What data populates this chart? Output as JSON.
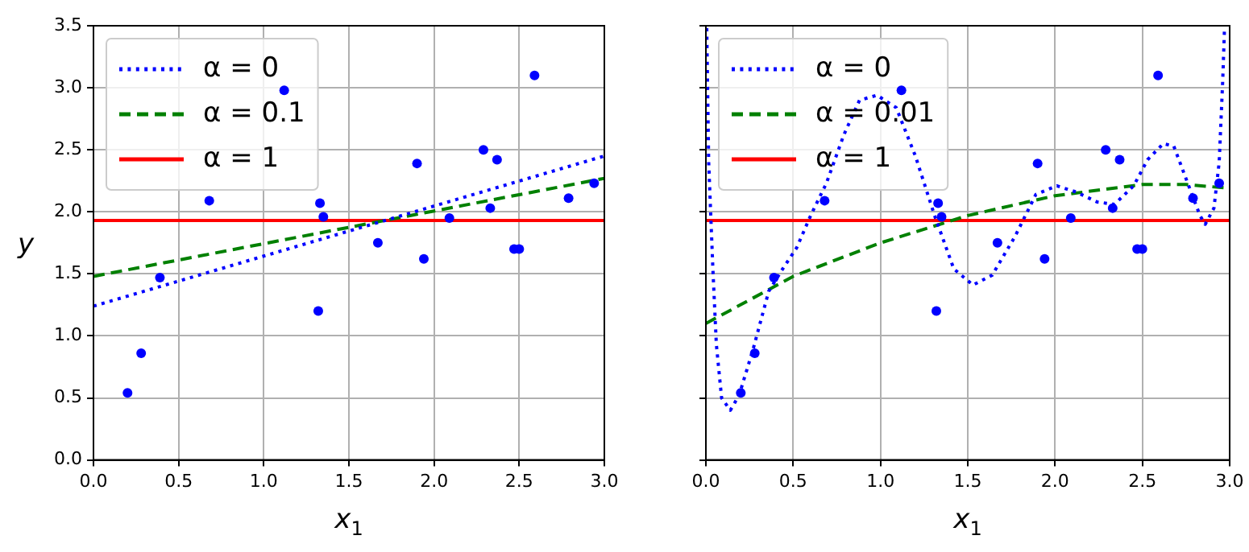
{
  "chart_data": [
    {
      "type": "scatter",
      "xlabel": "x$_{1}$",
      "ylabel": "y",
      "xlim": [
        0,
        3
      ],
      "ylim": [
        0,
        3.5
      ],
      "xticks": [
        {
          "value": 0,
          "label": "0.0"
        },
        0.5,
        {
          "value": 1,
          "label": "1.0"
        },
        1.5,
        {
          "value": 2,
          "label": "2.0"
        },
        2.5,
        {
          "value": 3,
          "label": "3.0"
        }
      ],
      "yticks": [
        {
          "value": 0,
          "label": "0.0"
        },
        0.5,
        {
          "value": 1,
          "label": "1.0"
        },
        1.5,
        {
          "value": 2,
          "label": "2.0"
        },
        2.5,
        {
          "value": 3,
          "label": "3.0"
        },
        3.5
      ],
      "grid": true,
      "legend": "top left",
      "series": [
        {
          "type": "scatter",
          "color": "#0000ff",
          "marker": "circle",
          "x": [
            0.2,
            0.28,
            0.39,
            0.68,
            1.12,
            1.33,
            1.35,
            1.32,
            1.67,
            1.9,
            1.94,
            2.09,
            2.29,
            2.33,
            2.37,
            2.47,
            2.5,
            2.59,
            2.79,
            2.94
          ],
          "values": [
            0.54,
            0.86,
            1.47,
            2.09,
            2.98,
            2.07,
            1.96,
            1.2,
            1.75,
            2.39,
            1.62,
            1.95,
            2.5,
            2.03,
            2.42,
            1.7,
            1.7,
            3.1,
            2.11,
            2.23
          ]
        },
        {
          "type": "line",
          "name": "α = 0",
          "color": "#0000ff",
          "line_style": "dotted",
          "x": [
            0,
            3
          ],
          "values": [
            1.24,
            2.45
          ]
        },
        {
          "type": "line",
          "name": "α = 0.1",
          "color": "#008000",
          "line_style": "dashed",
          "x": [
            0,
            3
          ],
          "values": [
            1.48,
            2.27
          ]
        },
        {
          "type": "line",
          "name": "α = 1",
          "color": "#ff0000",
          "line_style": "solid",
          "x": [
            0,
            3
          ],
          "values": [
            1.93,
            1.93
          ]
        }
      ]
    },
    {
      "type": "scatter",
      "xlabel": "x$_{1}$",
      "xlim": [
        0,
        3
      ],
      "ylim": [
        0,
        3.5
      ],
      "xticks": [
        {
          "value": 0,
          "label": "0.0"
        },
        0.5,
        {
          "value": 1,
          "label": "1.0"
        },
        1.5,
        {
          "value": 2,
          "label": "2.0"
        },
        2.5,
        {
          "value": 3,
          "label": "3.0"
        }
      ],
      "yticks": [
        0,
        0.5,
        1,
        1.5,
        2,
        2.5,
        3,
        3.5
      ],
      "grid": true,
      "legend": "top left",
      "tick_labels": "x",
      "series": [
        {
          "type": "scatter",
          "color": "#0000ff",
          "marker": "circle",
          "x": [
            0.2,
            0.28,
            0.39,
            0.68,
            1.12,
            1.33,
            1.35,
            1.32,
            1.67,
            1.9,
            1.94,
            2.09,
            2.29,
            2.33,
            2.37,
            2.47,
            2.5,
            2.59,
            2.79,
            2.94
          ],
          "values": [
            0.54,
            0.86,
            1.47,
            2.09,
            2.98,
            2.07,
            1.96,
            1.2,
            1.75,
            2.39,
            1.62,
            1.95,
            2.5,
            2.03,
            2.42,
            1.7,
            1.7,
            3.1,
            2.11,
            2.23
          ]
        },
        {
          "type": "line",
          "name": "α = 0",
          "color": "#0000ff",
          "line_style": "dotted",
          "x": [
            0.005,
            0.016,
            0.04,
            0.06,
            0.09,
            0.14,
            0.19,
            0.27,
            0.36,
            0.44,
            0.52,
            0.6,
            0.69,
            0.79,
            0.88,
            0.98,
            1.09,
            1.2,
            1.31,
            1.42,
            1.53,
            1.64,
            1.77,
            1.89,
            2.01,
            2.12,
            2.24,
            2.34,
            2.45,
            2.53,
            2.62,
            2.68,
            2.76,
            2.83,
            2.86,
            2.91,
            2.94,
            2.96,
            2.97
          ],
          "values": [
            3.48,
            2.4,
            1.54,
            0.93,
            0.5,
            0.4,
            0.52,
            0.89,
            1.36,
            1.54,
            1.71,
            1.97,
            2.23,
            2.62,
            2.9,
            2.94,
            2.84,
            2.45,
            1.97,
            1.54,
            1.41,
            1.49,
            1.8,
            2.14,
            2.21,
            2.16,
            2.08,
            2.06,
            2.21,
            2.42,
            2.55,
            2.53,
            2.23,
            1.97,
            1.9,
            2.03,
            2.4,
            3.05,
            3.46
          ]
        },
        {
          "type": "line",
          "name": "α = 0.01",
          "color": "#008000",
          "line_style": "dashed",
          "x": [
            0,
            0.5,
            1,
            1.5,
            2,
            2.5,
            2.75,
            3
          ],
          "values": [
            1.1,
            1.48,
            1.75,
            1.97,
            2.13,
            2.22,
            2.22,
            2.19
          ]
        },
        {
          "type": "line",
          "name": "α = 1",
          "color": "#ff0000",
          "line_style": "solid",
          "x": [
            0,
            3
          ],
          "values": [
            1.93,
            1.93
          ]
        }
      ]
    }
  ]
}
